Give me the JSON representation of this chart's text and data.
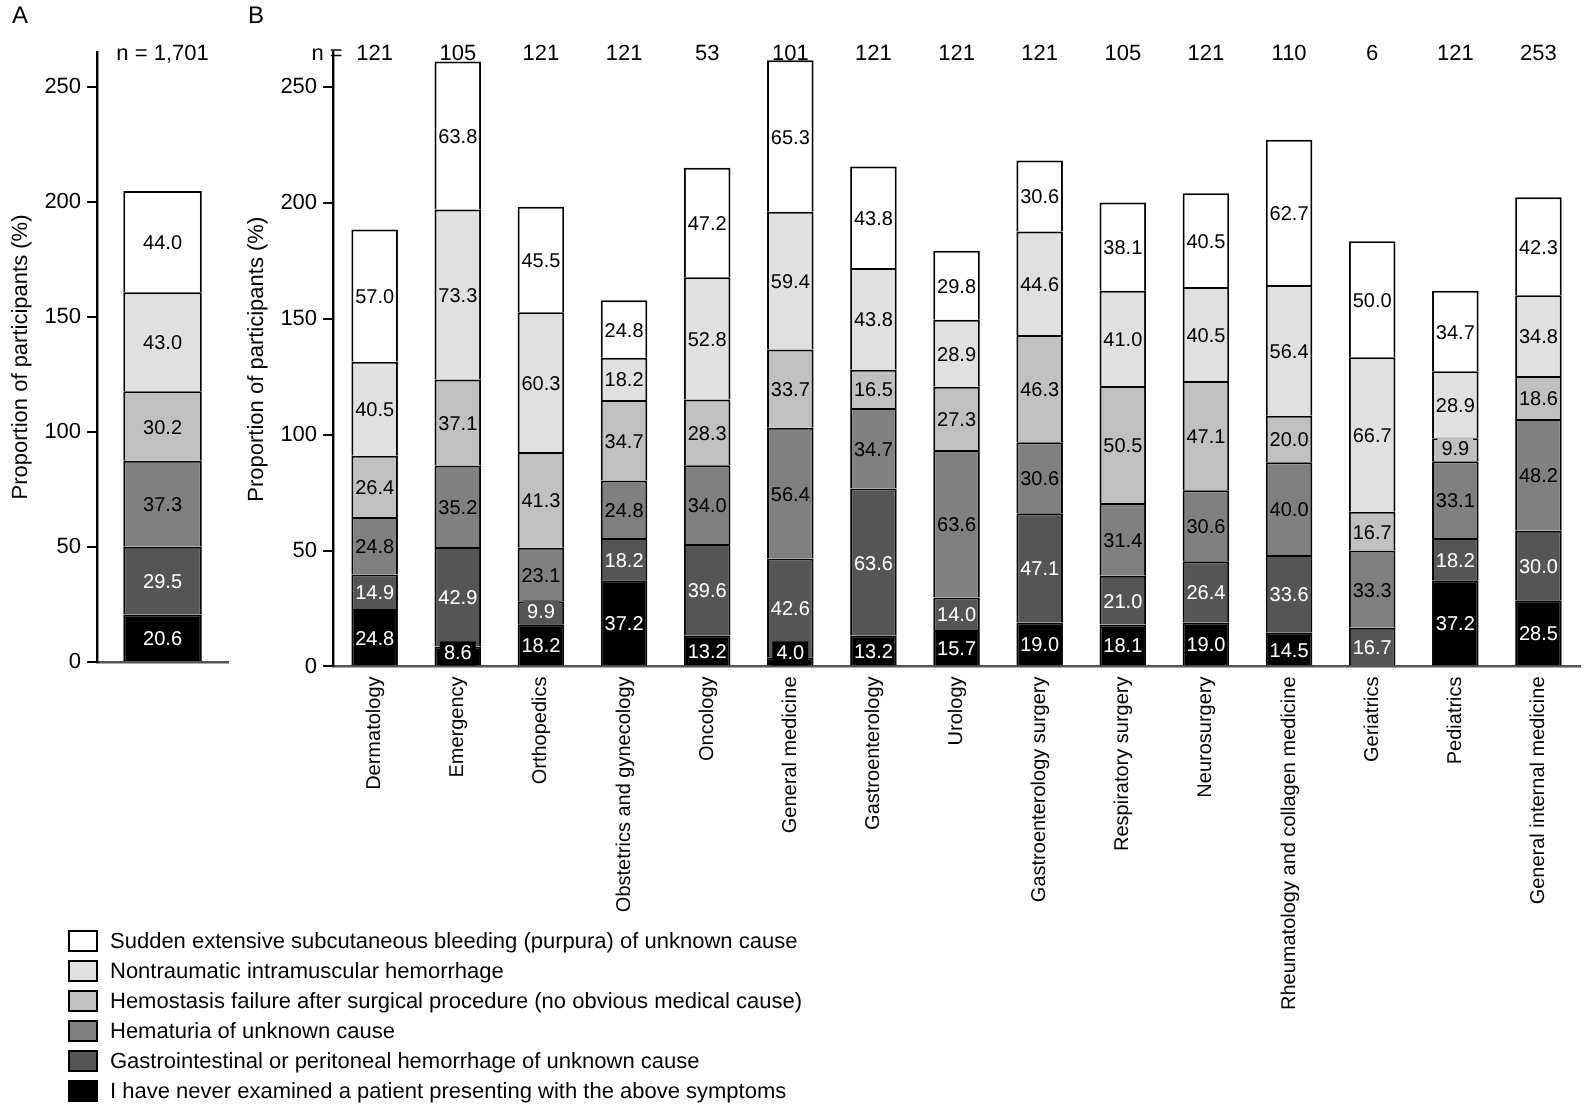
{
  "chart_data": [
    {
      "type": "bar",
      "title": "A",
      "ylabel": "Proportion of participants (%)",
      "categories": [
        null
      ],
      "stacked": true,
      "ylim": [
        0,
        265
      ],
      "yticks": [
        0,
        50,
        100,
        150,
        200,
        250
      ],
      "grid": false,
      "legend": false,
      "annotations": [
        "n = 1,701"
      ],
      "series": [
        {
          "color": "#000000",
          "values": [
            20.6
          ],
          "value_labels": [
            "20.6"
          ]
        },
        {
          "color": "#555555",
          "values": [
            29.5
          ],
          "value_labels": [
            "29.5"
          ]
        },
        {
          "color": "#808080",
          "values": [
            37.3
          ],
          "value_labels": [
            "37.3"
          ]
        },
        {
          "color": "#c0c0c0",
          "values": [
            30.2
          ],
          "value_labels": [
            "30.2"
          ]
        },
        {
          "color": "#e0e0e0",
          "values": [
            43.0
          ],
          "value_labels": [
            "43.0"
          ]
        },
        {
          "color": "#ffffff",
          "values": [
            44.0
          ],
          "value_labels": [
            "44.0"
          ]
        }
      ]
    },
    {
      "type": "bar",
      "title": "B",
      "ylabel": "Proportion of participants (%)",
      "categories": [
        "Dermatology",
        "Emergency",
        "Orthopedics",
        "Obstetrics and gynecology",
        "Oncology",
        "General medicine",
        "Gastroenterology",
        "Urology",
        "Gastroenterology surgery",
        "Respiratory surgery",
        "Neurosurgery",
        "Rheumatology and collagen medicine",
        "Geriatrics",
        "Pediatrics",
        "General internal medicine"
      ],
      "stacked": true,
      "ylim": [
        0,
        265
      ],
      "yticks": [
        0,
        50,
        100,
        150,
        200,
        250
      ],
      "grid": false,
      "legend": "bottom left",
      "annotations": [
        "n =",
        "121",
        "105",
        "121",
        "121",
        "53",
        "101",
        "121",
        "121",
        "121",
        "105",
        "121",
        "110",
        "6",
        "121",
        "253"
      ],
      "series": [
        {
          "name": "I have never examined a patient presenting with the above symptoms",
          "color": "#000000",
          "values": [
            24.8,
            8.6,
            18.2,
            37.2,
            13.2,
            4.0,
            13.2,
            15.7,
            19.0,
            18.1,
            19.0,
            14.5,
            null,
            37.2,
            28.5
          ],
          "value_labels": [
            "24.8",
            "8.6",
            "18.2",
            "37.2",
            "13.2",
            "4.0",
            "13.2",
            "15.7",
            "19.0",
            "18.1",
            "19.0",
            "14.5",
            null,
            "37.2",
            "28.5"
          ]
        },
        {
          "name": "Gastrointestinal or peritoneal hemorrhage of unknown cause",
          "color": "#555555",
          "values": [
            14.9,
            42.9,
            9.9,
            18.2,
            39.6,
            42.6,
            63.6,
            14.0,
            47.1,
            21.0,
            26.4,
            33.6,
            16.7,
            18.2,
            30.0
          ],
          "value_labels": [
            "14.9",
            "42.9",
            "9.9",
            "18.2",
            "39.6",
            "42.6",
            "63.6",
            "14.0",
            "47.1",
            "21.0",
            "26.4",
            "33.6",
            "16.7",
            "18.2",
            "30.0"
          ]
        },
        {
          "name": "Hematuria of unknown cause",
          "color": "#808080",
          "values": [
            24.8,
            35.2,
            23.1,
            24.8,
            34.0,
            56.4,
            34.7,
            63.6,
            30.6,
            31.4,
            30.6,
            40.0,
            33.3,
            33.1,
            48.2
          ],
          "value_labels": [
            "24.8",
            "35.2",
            "23.1",
            "24.8",
            "34.0",
            "56.4",
            "34.7",
            "63.6",
            "30.6",
            "31.4",
            "30.6",
            "40.0",
            "33.3",
            "33.1",
            "48.2"
          ]
        },
        {
          "name": "Hemostasis failure after surgical procedure (no obvious medical cause)",
          "color": "#c0c0c0",
          "values": [
            26.4,
            37.1,
            41.3,
            34.7,
            28.3,
            33.7,
            16.5,
            27.3,
            46.3,
            50.5,
            47.1,
            20.0,
            16.7,
            9.9,
            18.6
          ],
          "value_labels": [
            "26.4",
            "37.1",
            "41.3",
            "34.7",
            "28.3",
            "33.7",
            "16.5",
            "27.3",
            "46.3",
            "50.5",
            "47.1",
            "20.0",
            "16.7",
            "9.9",
            "18.6"
          ]
        },
        {
          "name": "Nontraumatic intramuscular hemorrhage",
          "color": "#e0e0e0",
          "values": [
            40.5,
            73.3,
            60.3,
            18.2,
            52.8,
            59.4,
            43.8,
            28.9,
            44.6,
            41.0,
            40.5,
            56.4,
            66.7,
            28.9,
            34.8
          ],
          "value_labels": [
            "40.5",
            "73.3",
            "60.3",
            "18.2",
            "52.8",
            "59.4",
            "43.8",
            "28.9",
            "44.6",
            "41.0",
            "40.5",
            "56.4",
            "66.7",
            "28.9",
            "34.8"
          ]
        },
        {
          "name": "Sudden extensive subcutaneous bleeding (purpura) of unknown cause",
          "color": "#ffffff",
          "values": [
            57.0,
            63.8,
            45.5,
            24.8,
            47.2,
            65.3,
            43.8,
            29.8,
            30.6,
            38.1,
            40.5,
            62.7,
            50.0,
            34.7,
            42.3
          ],
          "value_labels": [
            "57.0",
            "63.8",
            "45.5",
            "24.8",
            "47.2",
            "65.3",
            "43.8",
            "29.8",
            "30.6",
            "38.1",
            "40.5",
            "62.7",
            "50.0",
            "34.7",
            "42.3"
          ]
        }
      ]
    }
  ]
}
